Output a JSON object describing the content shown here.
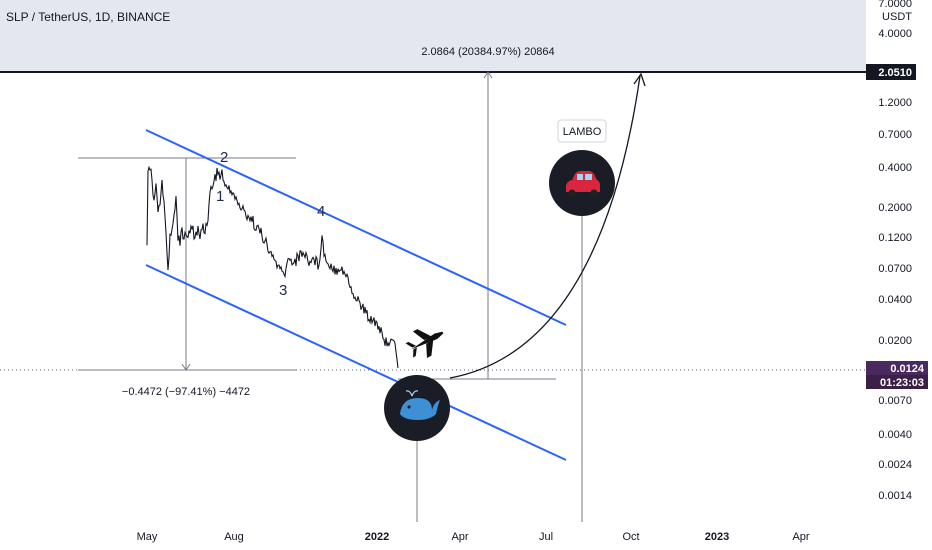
{
  "header": {
    "symbol_line": "SLP / TetherUS, 1D, BINANCE"
  },
  "price_axis": {
    "unit": "USDT",
    "top_label": "7.0000",
    "ticks": [
      "4.0000",
      "1.2000",
      "0.7000",
      "0.4000",
      "0.2000",
      "0.1200",
      "0.0700",
      "0.0400",
      "0.0200",
      "0.0070",
      "0.0040",
      "0.0024",
      "0.0014"
    ],
    "target_badge": "2.0510",
    "current_badge": "0.0124",
    "countdown": "01:23:03"
  },
  "time_axis": {
    "labels": [
      "May",
      "Aug",
      "2022",
      "Apr",
      "Jul",
      "Oct",
      "2023",
      "Apr"
    ]
  },
  "annotations": {
    "measure_up": "2.0864 (20384.97%) 20864",
    "measure_down": "−0.4472 (−97.41%) −4472",
    "wave_labels": [
      "1",
      "2",
      "3",
      "4"
    ],
    "lambo_label": "LAMBO"
  },
  "icons": {
    "car": "car-icon",
    "whale": "whale-icon",
    "plane": "airplane-icon"
  },
  "colors": {
    "channel": "#2962ff",
    "price_line": "#131722",
    "target_badge_bg": "#131722",
    "current_badge_bg": "#4a2a5e",
    "countdown_bg": "#3a2046",
    "icon_circle": "#1a1d26",
    "upper_band": "#e5e7ee"
  }
}
